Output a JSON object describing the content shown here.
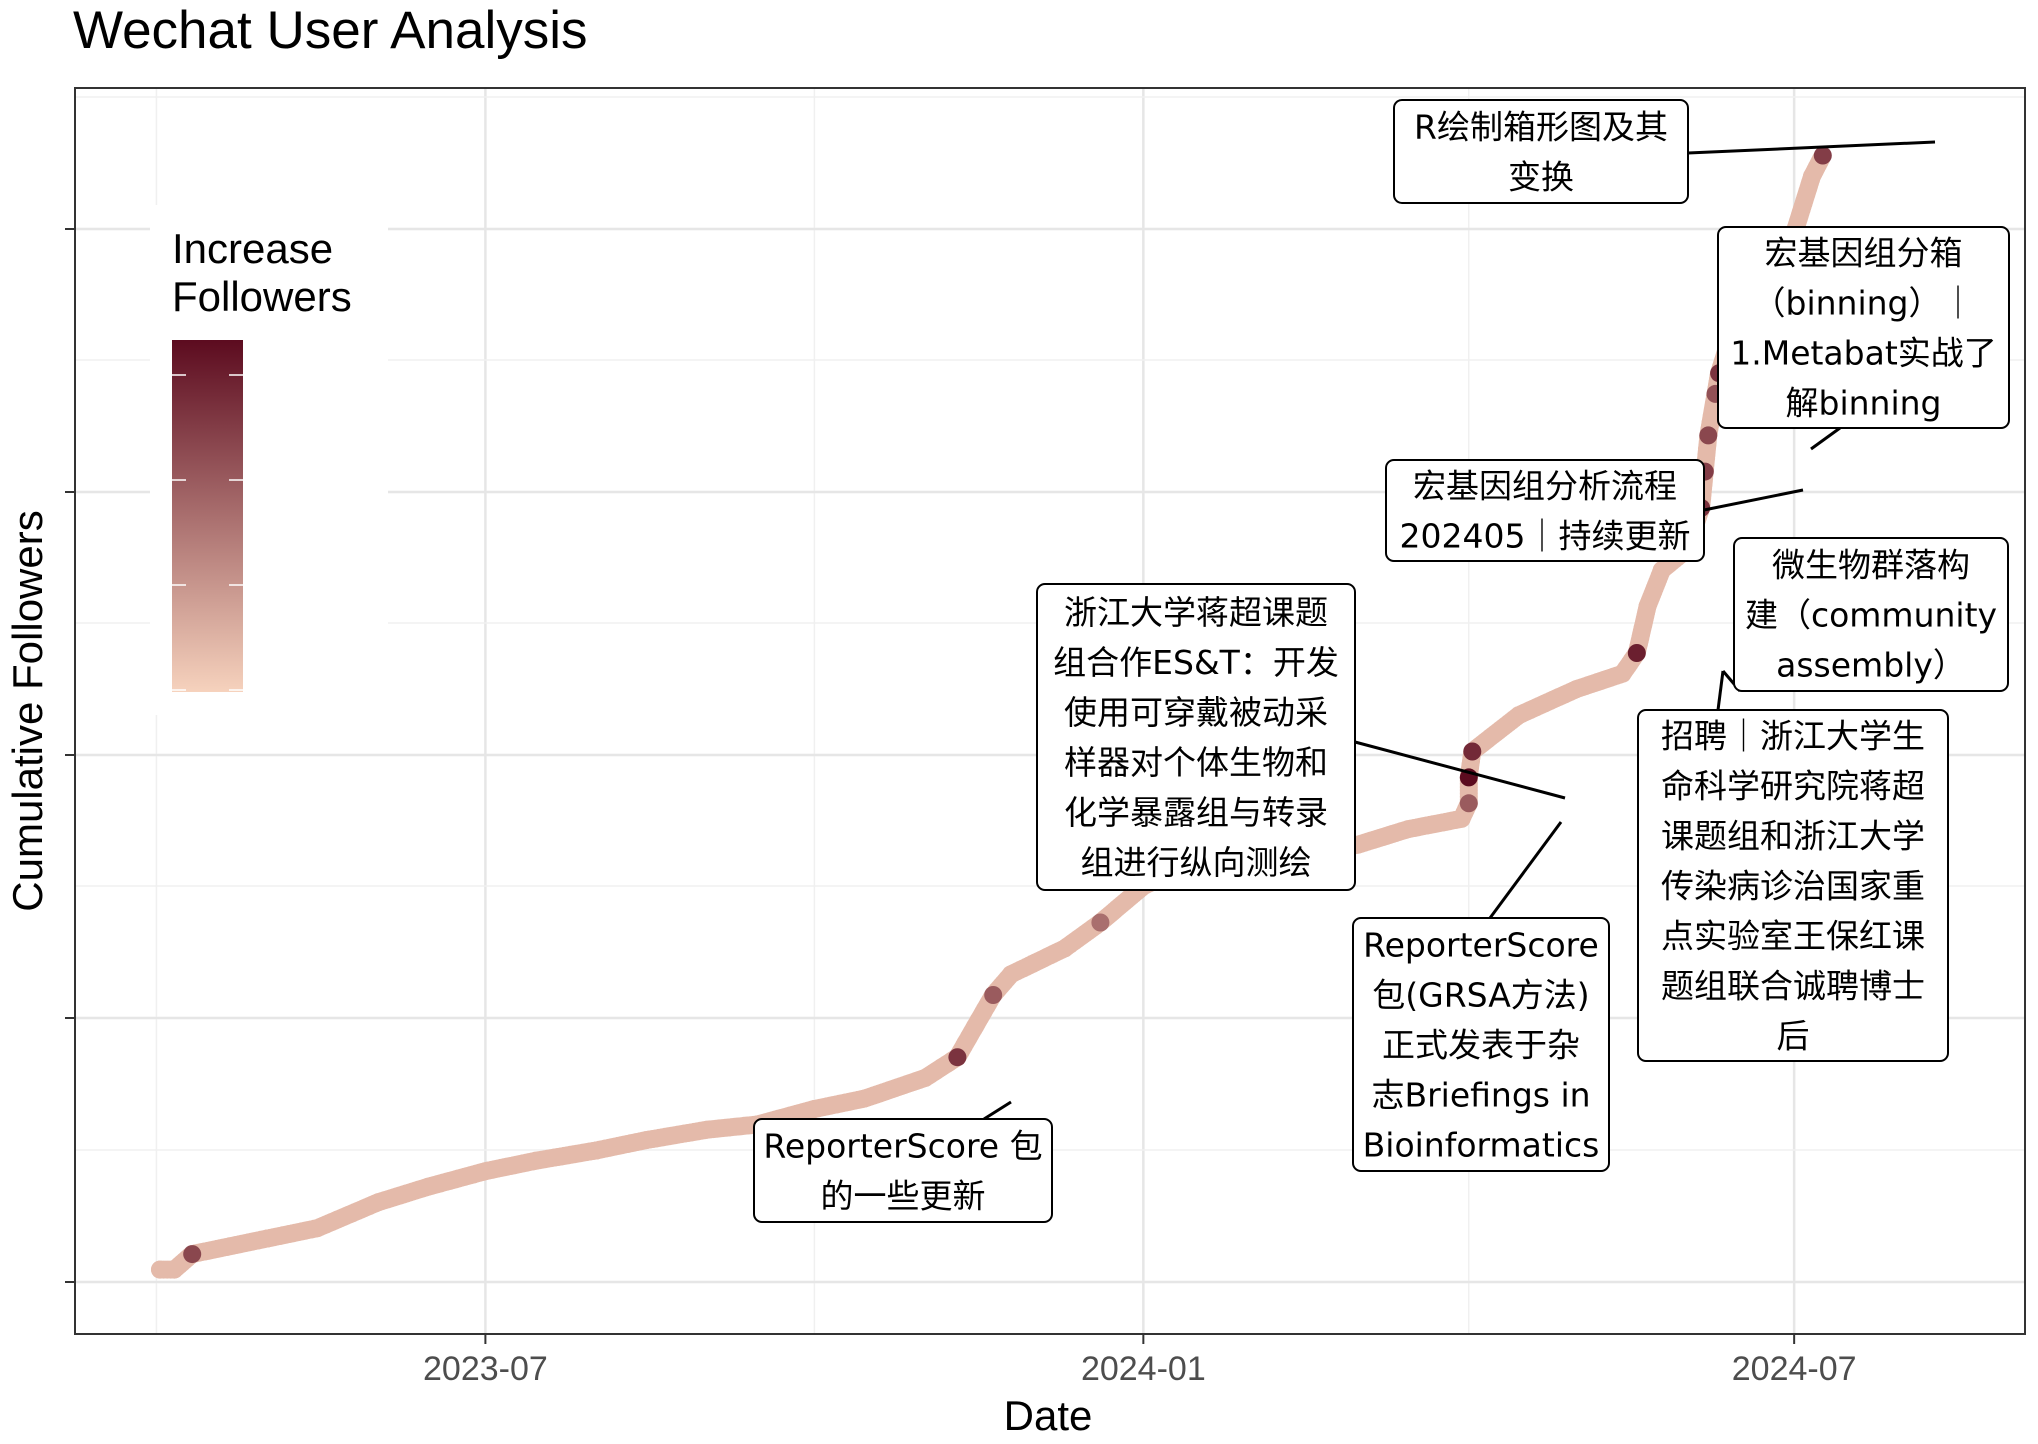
{
  "chart_data": {
    "type": "scatter",
    "title": "Wechat User Analysis",
    "xlabel": "Date",
    "ylabel": "Cumulative Followers",
    "x_ticks": [
      "2023-07",
      "2024-01",
      "2024-07"
    ],
    "xlim": [
      "2023-04-01",
      "2024-08-01"
    ],
    "y_tick_count": 5,
    "grid": true,
    "point_color_scale": {
      "low": "#f6d2bd",
      "high": "#5c0b1f"
    },
    "legend": {
      "title_lines": [
        "Increase",
        "Followers"
      ],
      "position": "top-left-inside"
    },
    "points": [
      {
        "x": "2023-04-01",
        "y": 2
      },
      {
        "x": "2023-04-05",
        "y": 2
      },
      {
        "x": "2023-04-10",
        "y": 5,
        "c": 0.7
      },
      {
        "x": "2023-05-01",
        "y": 8
      },
      {
        "x": "2023-05-15",
        "y": 10
      },
      {
        "x": "2023-06-01",
        "y": 15
      },
      {
        "x": "2023-06-15",
        "y": 18
      },
      {
        "x": "2023-07-01",
        "y": 21
      },
      {
        "x": "2023-07-15",
        "y": 23
      },
      {
        "x": "2023-08-01",
        "y": 25
      },
      {
        "x": "2023-08-15",
        "y": 27
      },
      {
        "x": "2023-09-01",
        "y": 29
      },
      {
        "x": "2023-09-15",
        "y": 30
      },
      {
        "x": "2023-10-01",
        "y": 33
      },
      {
        "x": "2023-10-15",
        "y": 35
      },
      {
        "x": "2023-11-01",
        "y": 39
      },
      {
        "x": "2023-11-10",
        "y": 43,
        "c": 0.8
      },
      {
        "x": "2023-11-15",
        "y": 49
      },
      {
        "x": "2023-11-20",
        "y": 55,
        "c": 0.6
      },
      {
        "x": "2023-11-25",
        "y": 59
      },
      {
        "x": "2023-12-01",
        "y": 61
      },
      {
        "x": "2023-12-10",
        "y": 64
      },
      {
        "x": "2023-12-20",
        "y": 69,
        "c": 0.5
      },
      {
        "x": "2024-01-01",
        "y": 76
      },
      {
        "x": "2024-01-10",
        "y": 79
      },
      {
        "x": "2024-01-20",
        "y": 80
      },
      {
        "x": "2024-01-27",
        "y": 80,
        "c": 0.4
      },
      {
        "x": "2024-02-10",
        "y": 82
      },
      {
        "x": "2024-03-01",
        "y": 84
      },
      {
        "x": "2024-03-15",
        "y": 87
      },
      {
        "x": "2024-03-30",
        "y": 89
      },
      {
        "x": "2024-04-01",
        "y": 92,
        "c": 0.6
      },
      {
        "x": "2024-04-01",
        "y": 97,
        "c": 1.0
      },
      {
        "x": "2024-04-02",
        "y": 102,
        "c": 0.85
      },
      {
        "x": "2024-04-15",
        "y": 109
      },
      {
        "x": "2024-05-01",
        "y": 114
      },
      {
        "x": "2024-05-14",
        "y": 117
      },
      {
        "x": "2024-05-18",
        "y": 121,
        "c": 0.9
      },
      {
        "x": "2024-05-21",
        "y": 130
      },
      {
        "x": "2024-05-25",
        "y": 137
      },
      {
        "x": "2024-06-01",
        "y": 141
      },
      {
        "x": "2024-06-05",
        "y": 149,
        "c": 0.8
      },
      {
        "x": "2024-06-06",
        "y": 156,
        "c": 0.75
      },
      {
        "x": "2024-06-07",
        "y": 163,
        "c": 0.7
      },
      {
        "x": "2024-06-09",
        "y": 171,
        "c": 0.65
      },
      {
        "x": "2024-06-10",
        "y": 175,
        "c": 0.8
      },
      {
        "x": "2024-06-15",
        "y": 186
      },
      {
        "x": "2024-06-25",
        "y": 195
      },
      {
        "x": "2024-07-01",
        "y": 202
      },
      {
        "x": "2024-07-06",
        "y": 213
      },
      {
        "x": "2024-07-09",
        "y": 217,
        "c": 0.75
      }
    ],
    "annotations": [
      {
        "lines": [
          "R绘制箱形图及其",
          "变换"
        ]
      },
      {
        "lines": [
          "宏基因组分箱",
          "（binning）｜",
          "1.Metabat实战了",
          "解binning"
        ]
      },
      {
        "lines": [
          "宏基因组分析流程",
          "202405｜持续更新"
        ]
      },
      {
        "lines": [
          "微生物群落构",
          "建（community",
          "assembly）"
        ]
      },
      {
        "lines": [
          "浙江大学蒋超课题",
          "组合作ES&T：开发",
          "使用可穿戴被动采",
          "样器对个体生物和",
          "化学暴露组与转录",
          "组进行纵向测绘"
        ]
      },
      {
        "lines": [
          "招聘｜浙江大学生",
          "命科学研究院蒋超",
          "课题组和浙江大学",
          "传染病诊治国家重",
          "点实验室王保红课",
          "题组联合诚聘博士",
          "后"
        ]
      },
      {
        "lines": [
          "ReporterScore",
          "包(GRSA方法)",
          "正式发表于杂",
          "志Briefings in",
          "Bioinformatics"
        ]
      },
      {
        "lines": [
          "ReporterScore 包",
          "的一些更新"
        ]
      }
    ]
  }
}
